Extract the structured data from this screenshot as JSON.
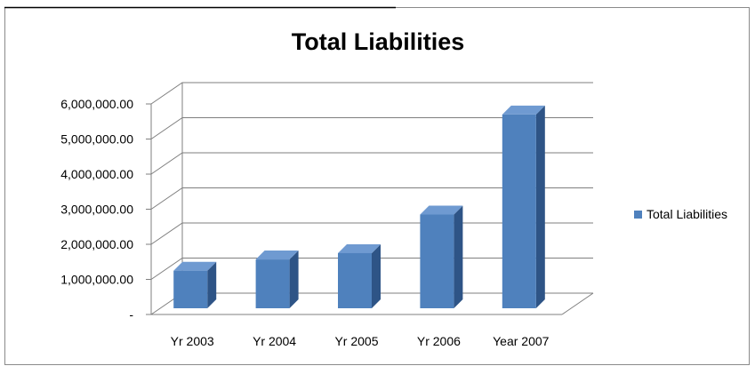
{
  "chart_data": {
    "type": "bar",
    "title": "Total Liabilities",
    "categories": [
      "Yr 2003",
      "Yr 2004",
      "Yr 2005",
      "Yr 2006",
      "Year 2007"
    ],
    "series": [
      {
        "name": "Total Liabilities",
        "values": [
          1400000,
          1720000,
          1900000,
          3000000,
          5850000
        ]
      }
    ],
    "y_ticks": [
      0,
      1000000,
      2000000,
      3000000,
      4000000,
      5000000,
      6000000
    ],
    "y_tick_labels": [
      "-",
      "1,000,000.00",
      "2,000,000.00",
      "3,000,000.00",
      "4,000,000.00",
      "5,000,000.00",
      "6,000,000.00"
    ],
    "ylim": [
      0,
      6000000
    ],
    "grid": true,
    "legend_position": "right",
    "style": "3d-column",
    "colors": {
      "bar_front": "#4f81bd",
      "bar_side": "#2e5486",
      "bar_top": "#6f9ad1",
      "grid": "#7f7f7f",
      "axis_text": "#000000"
    }
  }
}
